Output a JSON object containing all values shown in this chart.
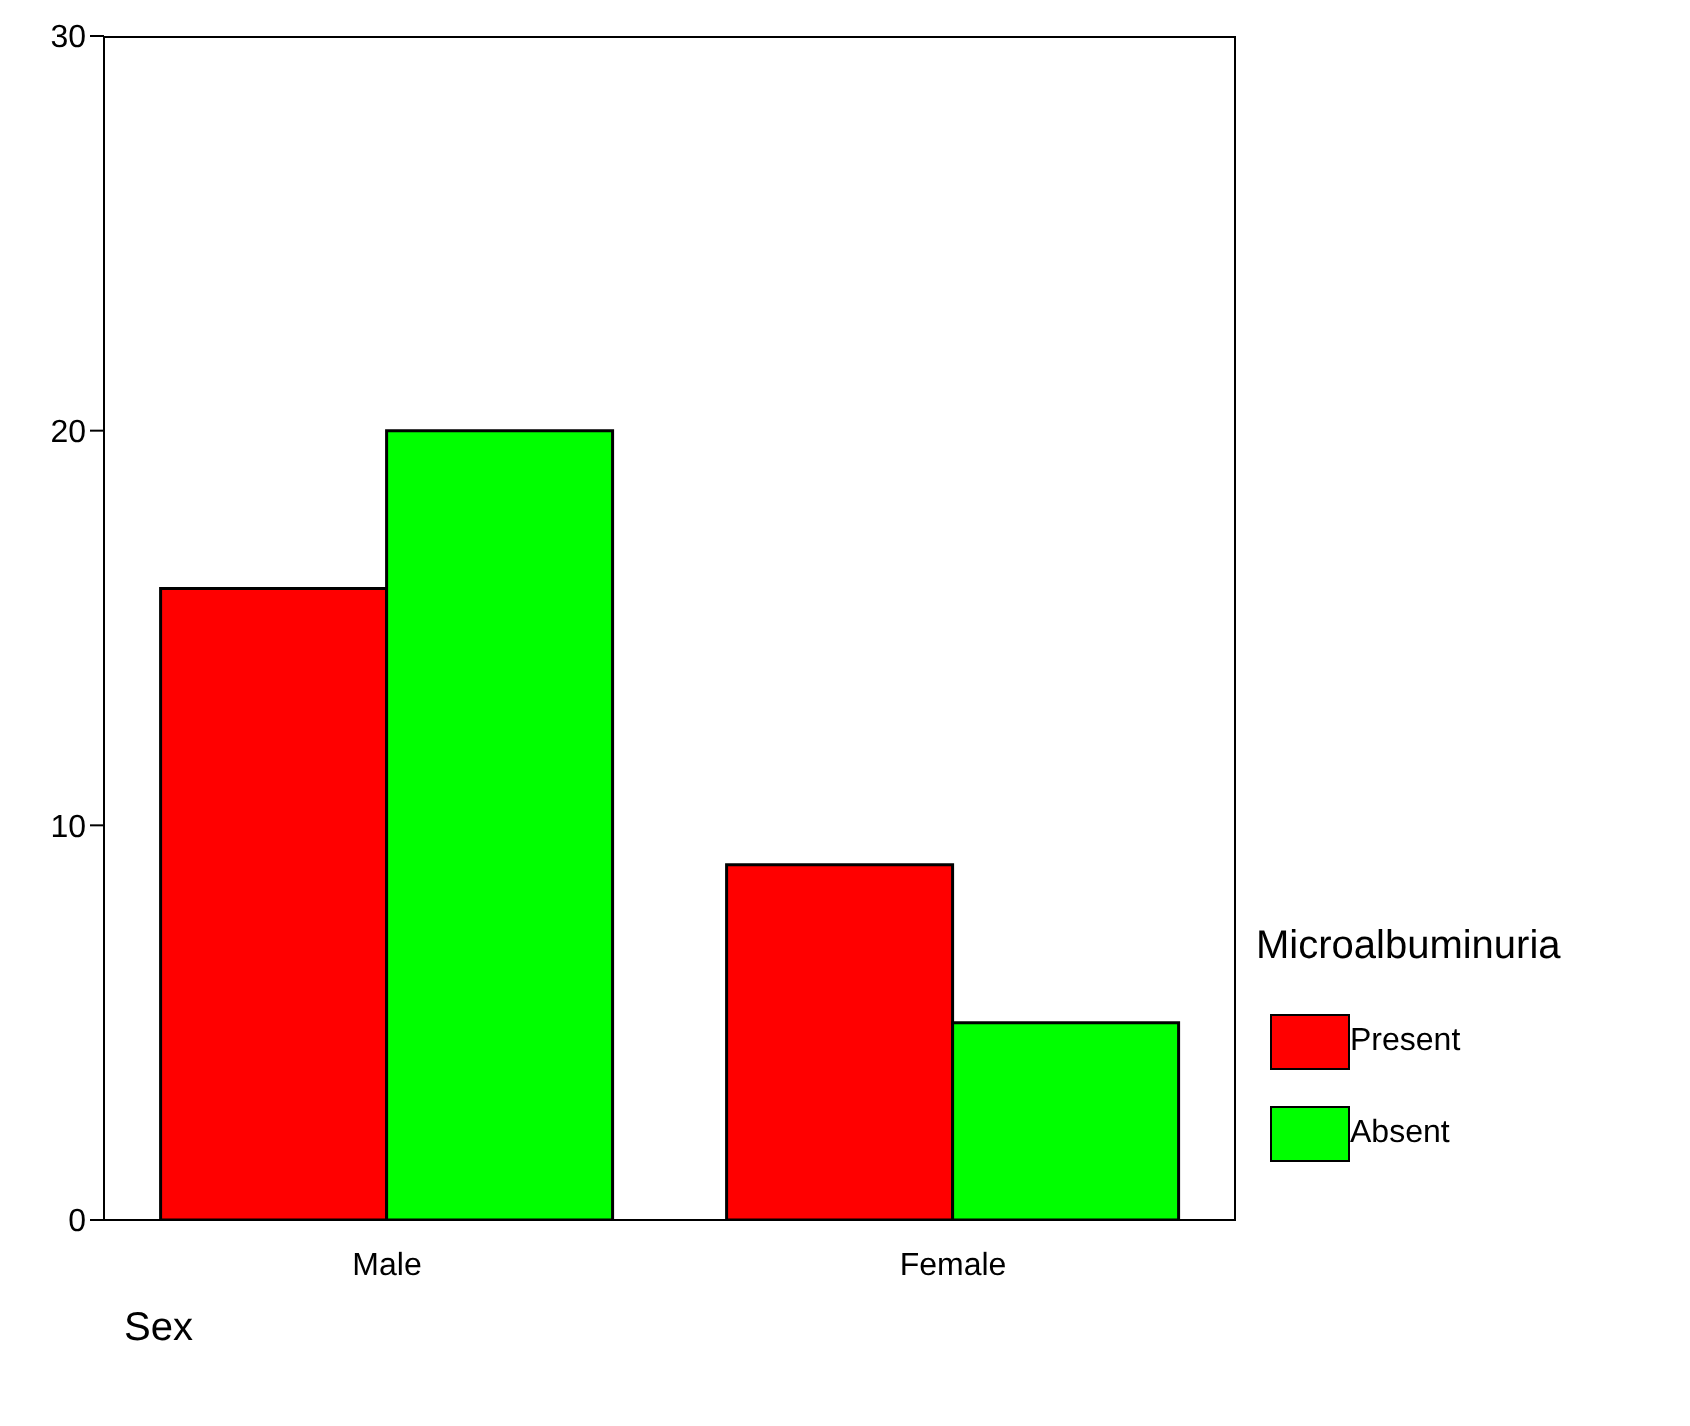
{
  "chart_data": {
    "type": "bar",
    "xlabel": "Sex",
    "legend_title": "Microalbuminuria",
    "categories": [
      "Male",
      "Female"
    ],
    "series": [
      {
        "name": "Present",
        "color": "#ff0000",
        "values": [
          16,
          9
        ]
      },
      {
        "name": "Absent",
        "color": "#00ff00",
        "values": [
          20,
          5
        ]
      }
    ],
    "ylim": [
      0,
      30
    ],
    "yticks": [
      0,
      10,
      20,
      30
    ],
    "grid": false,
    "legend": "right"
  }
}
